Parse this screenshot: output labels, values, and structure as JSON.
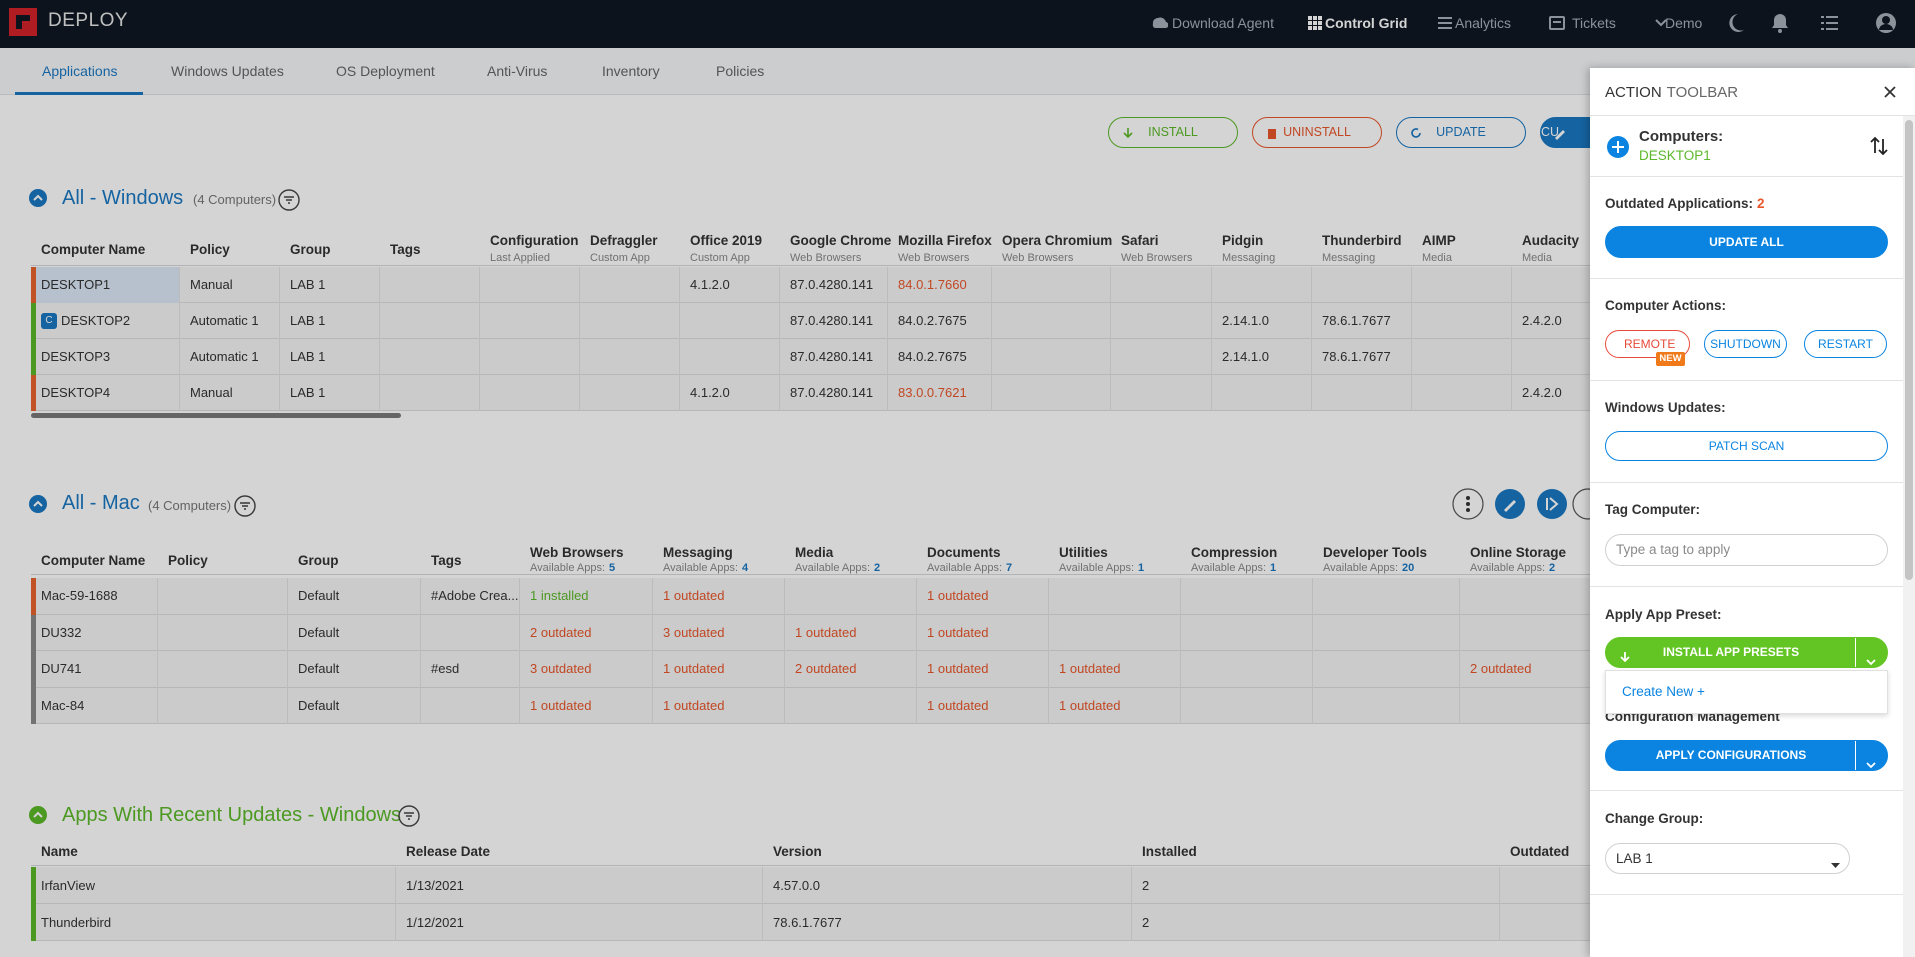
{
  "nav": {
    "brand": "DEPLOY",
    "items": [
      "Download Agent",
      "Control Grid",
      "Analytics",
      "Tickets",
      "Demo"
    ]
  },
  "tabs": {
    "items": [
      "Applications",
      "Windows Updates",
      "OS Deployment",
      "Anti-Virus",
      "Inventory",
      "Policies"
    ],
    "active": 0
  },
  "actions": [
    "INSTALL",
    "UNINSTALL",
    "UPDATE",
    "CU"
  ],
  "windows": {
    "title": "All - Windows",
    "count": "(4 Computers)",
    "columns": [
      {
        "name": "Computer Name"
      },
      {
        "name": "Policy"
      },
      {
        "name": "Group"
      },
      {
        "name": "Tags"
      },
      {
        "name": "Configuration",
        "sub": "Last Applied"
      },
      {
        "name": "Defraggler",
        "sub": "Custom App"
      },
      {
        "name": "Office 2019",
        "sub": "Custom App"
      },
      {
        "name": "Google Chrome",
        "sub": "Web Browsers"
      },
      {
        "name": "Mozilla Firefox",
        "sub": "Web Browsers"
      },
      {
        "name": "Opera Chromium",
        "sub": "Web Browsers"
      },
      {
        "name": "Safari",
        "sub": "Web Browsers"
      },
      {
        "name": "Pidgin",
        "sub": "Messaging"
      },
      {
        "name": "Thunderbird",
        "sub": "Messaging"
      },
      {
        "name": "AIMP",
        "sub": "Media"
      },
      {
        "name": "Audacity",
        "sub": "Media"
      }
    ],
    "rows": [
      {
        "color": "#e8632e",
        "selected": true,
        "cells": [
          "DESKTOP1",
          "Manual",
          "LAB 1",
          null,
          null,
          null,
          "4.1.2.0",
          "87.0.4280.141",
          {
            "text": "84.0.1.7660",
            "color": "#e8562a"
          },
          null,
          null,
          null,
          null,
          null,
          null
        ]
      },
      {
        "color": "#5cb82a",
        "badge": "C",
        "cells": [
          "DESKTOP2",
          "Automatic 1",
          "LAB 1",
          null,
          null,
          null,
          null,
          "87.0.4280.141",
          "84.0.2.7675",
          null,
          null,
          "2.14.1.0",
          "78.6.1.7677",
          null,
          "2.4.2.0"
        ]
      },
      {
        "color": "#5cb82a",
        "cells": [
          "DESKTOP3",
          "Automatic 1",
          "LAB 1",
          null,
          null,
          null,
          null,
          "87.0.4280.141",
          "84.0.2.7675",
          null,
          null,
          "2.14.1.0",
          "78.6.1.7677",
          null,
          null
        ]
      },
      {
        "color": "#e8632e",
        "cells": [
          "DESKTOP4",
          "Manual",
          "LAB 1",
          null,
          null,
          null,
          "4.1.2.0",
          "87.0.4280.141",
          {
            "text": "83.0.0.7621",
            "color": "#e8562a"
          },
          null,
          null,
          null,
          null,
          null,
          "2.4.2.0"
        ]
      }
    ]
  },
  "mac": {
    "title": "All - Mac",
    "count": "(4 Computers)",
    "columns": [
      {
        "name": "Computer Name"
      },
      {
        "name": "Policy"
      },
      {
        "name": "Group"
      },
      {
        "name": "Tags"
      },
      {
        "name": "Web Browsers",
        "sub": "Available Apps:",
        "count": "5"
      },
      {
        "name": "Messaging",
        "sub": "Available Apps:",
        "count": "4"
      },
      {
        "name": "Media",
        "sub": "Available Apps:",
        "count": "2"
      },
      {
        "name": "Documents",
        "sub": "Available Apps:",
        "count": "7"
      },
      {
        "name": "Utilities",
        "sub": "Available Apps:",
        "count": "1"
      },
      {
        "name": "Compression",
        "sub": "Available Apps:",
        "count": "1"
      },
      {
        "name": "Developer Tools",
        "sub": "Available Apps:",
        "count": "20"
      },
      {
        "name": "Online Storage",
        "sub": "Available Apps:",
        "count": "2"
      }
    ],
    "rows": [
      {
        "color": "#e8632e",
        "cells": [
          "Mac-59-1688",
          null,
          "Default",
          "#Adobe Crea...",
          {
            "text": "1 installed",
            "color": "#5cb82a"
          },
          {
            "text": "1 outdated",
            "color": "#e8562a"
          },
          null,
          {
            "text": "1 outdated",
            "color": "#e8562a"
          },
          null,
          null,
          null,
          null
        ]
      },
      {
        "color": "#8a8a8a",
        "cells": [
          "DU332",
          null,
          "Default",
          null,
          {
            "text": "2 outdated",
            "color": "#e8562a"
          },
          {
            "text": "3 outdated",
            "color": "#e8562a"
          },
          {
            "text": "1 outdated",
            "color": "#e8562a"
          },
          {
            "text": "1 outdated",
            "color": "#e8562a"
          },
          null,
          null,
          null,
          null
        ]
      },
      {
        "color": "#8a8a8a",
        "cells": [
          "DU741",
          null,
          "Default",
          "#esd",
          {
            "text": "3 outdated",
            "color": "#e8562a"
          },
          {
            "text": "1 outdated",
            "color": "#e8562a"
          },
          {
            "text": "2 outdated",
            "color": "#e8562a"
          },
          {
            "text": "1 outdated",
            "color": "#e8562a"
          },
          {
            "text": "1 outdated",
            "color": "#e8562a"
          },
          null,
          null,
          {
            "text": "2 outdated",
            "color": "#e8562a"
          }
        ]
      },
      {
        "color": "#8a8a8a",
        "cells": [
          "Mac-84",
          null,
          "Default",
          null,
          {
            "text": "1 outdated",
            "color": "#e8562a"
          },
          {
            "text": "1 outdated",
            "color": "#e8562a"
          },
          null,
          {
            "text": "1 outdated",
            "color": "#e8562a"
          },
          {
            "text": "1 outdated",
            "color": "#e8562a"
          },
          null,
          null,
          null
        ]
      }
    ]
  },
  "recent": {
    "title": "Apps With Recent Updates - Windows",
    "columns": [
      {
        "name": "Name"
      },
      {
        "name": "Release Date"
      },
      {
        "name": "Version"
      },
      {
        "name": "Installed"
      },
      {
        "name": "Outdated"
      }
    ],
    "rows": [
      {
        "color": "#5cb82a",
        "cells": [
          "IrfanView",
          "1/13/2021",
          "4.57.0.0",
          2,
          null
        ]
      },
      {
        "color": "#5cb82a",
        "cells": [
          "Thunderbird",
          "1/12/2021",
          "78.6.1.7677",
          2,
          null
        ]
      }
    ]
  },
  "toolbar": {
    "title": "ACTION",
    "title2": "TOOLBAR",
    "computers_label": "Computers:",
    "computer": "DESKTOP1",
    "outdated_label": "Outdated Applications:",
    "outdated_count": 2,
    "update_all": "UPDATE ALL",
    "actions_label": "Computer Actions:",
    "remote": "REMOTE",
    "new_badge": "NEW",
    "shutdown": "SHUTDOWN",
    "restart": "RESTART",
    "wu_label": "Windows Updates:",
    "patch_scan": "PATCH SCAN",
    "tag_label": "Tag Computer:",
    "tag_placeholder": "Type a tag to apply",
    "preset_label": "Apply App Preset:",
    "install_presets": "INSTALL APP PRESETS",
    "create_new": "Create New +",
    "config_label": "Configuration Management",
    "apply_config": "APPLY CONFIGURATIONS",
    "group_label": "Change Group:",
    "group": "LAB 1"
  }
}
